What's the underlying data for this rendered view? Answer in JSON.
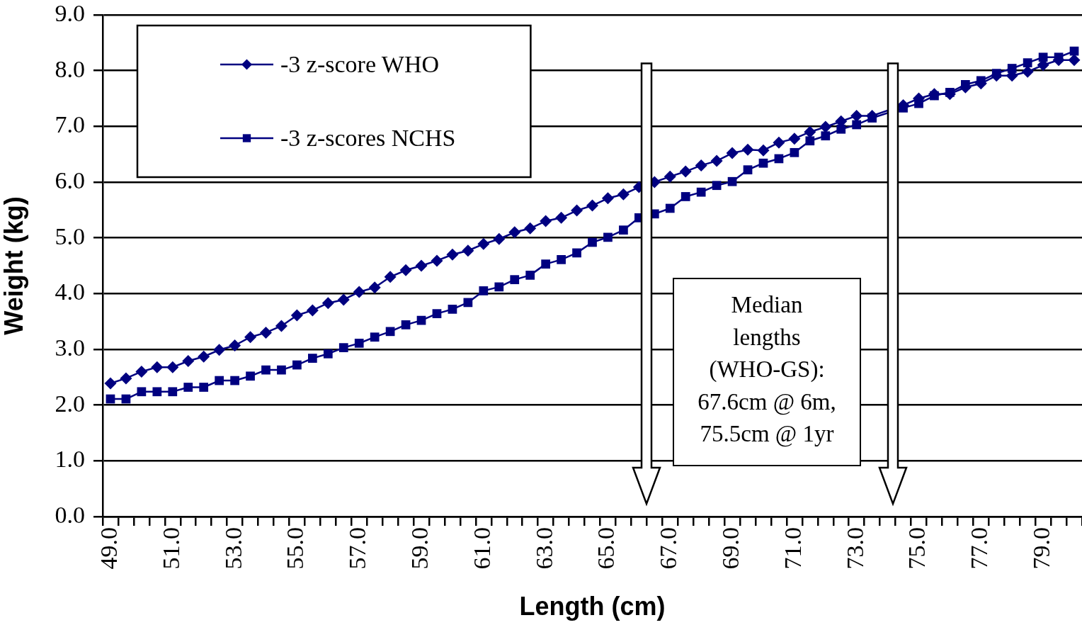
{
  "chart_data": {
    "type": "line",
    "xlabel": "Length (cm)",
    "ylabel": "Weight (kg)",
    "categories": [
      "49.0",
      null,
      null,
      null,
      "51.0",
      null,
      null,
      null,
      "53.0",
      null,
      null,
      null,
      "55.0",
      null,
      null,
      null,
      "57.0",
      null,
      null,
      null,
      "59.0",
      null,
      null,
      null,
      "61.0",
      null,
      null,
      null,
      "63.0",
      null,
      null,
      null,
      "65.0",
      null,
      null,
      null,
      "67.0",
      null,
      null,
      null,
      "69.0",
      null,
      null,
      null,
      "71.0",
      null,
      null,
      null,
      "73.0",
      null,
      null,
      null,
      "75.0",
      null,
      null,
      null,
      "77.0",
      null,
      null,
      null,
      "79.0",
      null,
      null
    ],
    "series": [
      {
        "name": "-3 z-score WHO",
        "color": "#000080",
        "marker": "diamond",
        "values": [
          2.39,
          2.48,
          2.6,
          2.68,
          2.68,
          2.79,
          2.87,
          2.99,
          3.07,
          3.22,
          3.3,
          3.42,
          3.61,
          3.7,
          3.83,
          3.89,
          4.03,
          4.11,
          4.3,
          4.42,
          4.5,
          4.59,
          4.7,
          4.77,
          4.89,
          4.98,
          5.1,
          5.17,
          5.3,
          5.36,
          5.49,
          5.58,
          5.71,
          5.78,
          5.91,
          6.0,
          6.1,
          6.19,
          6.3,
          6.38,
          6.52,
          6.58,
          6.57,
          6.71,
          6.78,
          6.9,
          6.99,
          7.09,
          7.19,
          7.19,
          null,
          7.38,
          7.5,
          7.58,
          7.58,
          7.7,
          7.77,
          7.91,
          7.91,
          7.98,
          8.1,
          8.19,
          8.19
        ]
      },
      {
        "name": "-3 z-scores NCHS",
        "color": "#000080",
        "marker": "square",
        "values": [
          2.11,
          2.11,
          2.24,
          2.24,
          2.24,
          2.32,
          2.32,
          2.44,
          2.44,
          2.52,
          2.63,
          2.63,
          2.72,
          2.84,
          2.92,
          3.03,
          3.11,
          3.22,
          3.32,
          3.44,
          3.52,
          3.64,
          3.72,
          3.84,
          4.05,
          4.12,
          4.25,
          4.33,
          4.53,
          4.61,
          4.73,
          4.92,
          5.01,
          5.14,
          5.36,
          5.43,
          5.53,
          5.74,
          5.82,
          5.94,
          6.01,
          6.22,
          6.34,
          6.42,
          6.53,
          6.74,
          6.83,
          6.95,
          7.03,
          7.15,
          null,
          7.33,
          7.41,
          7.55,
          7.61,
          7.75,
          7.82,
          7.95,
          8.04,
          8.14,
          8.24,
          8.24,
          8.35
        ]
      }
    ],
    "ylim": [
      0,
      9
    ],
    "yticks": [
      {
        "value": 0,
        "label": "0.0"
      },
      {
        "value": 1,
        "label": "1.0"
      },
      {
        "value": 2,
        "label": "2.0"
      },
      {
        "value": 3,
        "label": "3.0"
      },
      {
        "value": 4,
        "label": "4.0"
      },
      {
        "value": 5,
        "label": "5.0"
      },
      {
        "value": 6,
        "label": "6.0"
      },
      {
        "value": 7,
        "label": "7.0"
      },
      {
        "value": 8,
        "label": "8.0"
      },
      {
        "value": 9,
        "label": "9.0"
      }
    ],
    "grid": "y",
    "legend": "top left",
    "annotations": [
      "Median lengths (WHO-GS): 67.6cm @ 6m, 75.5cm @ 1yr"
    ]
  }
}
